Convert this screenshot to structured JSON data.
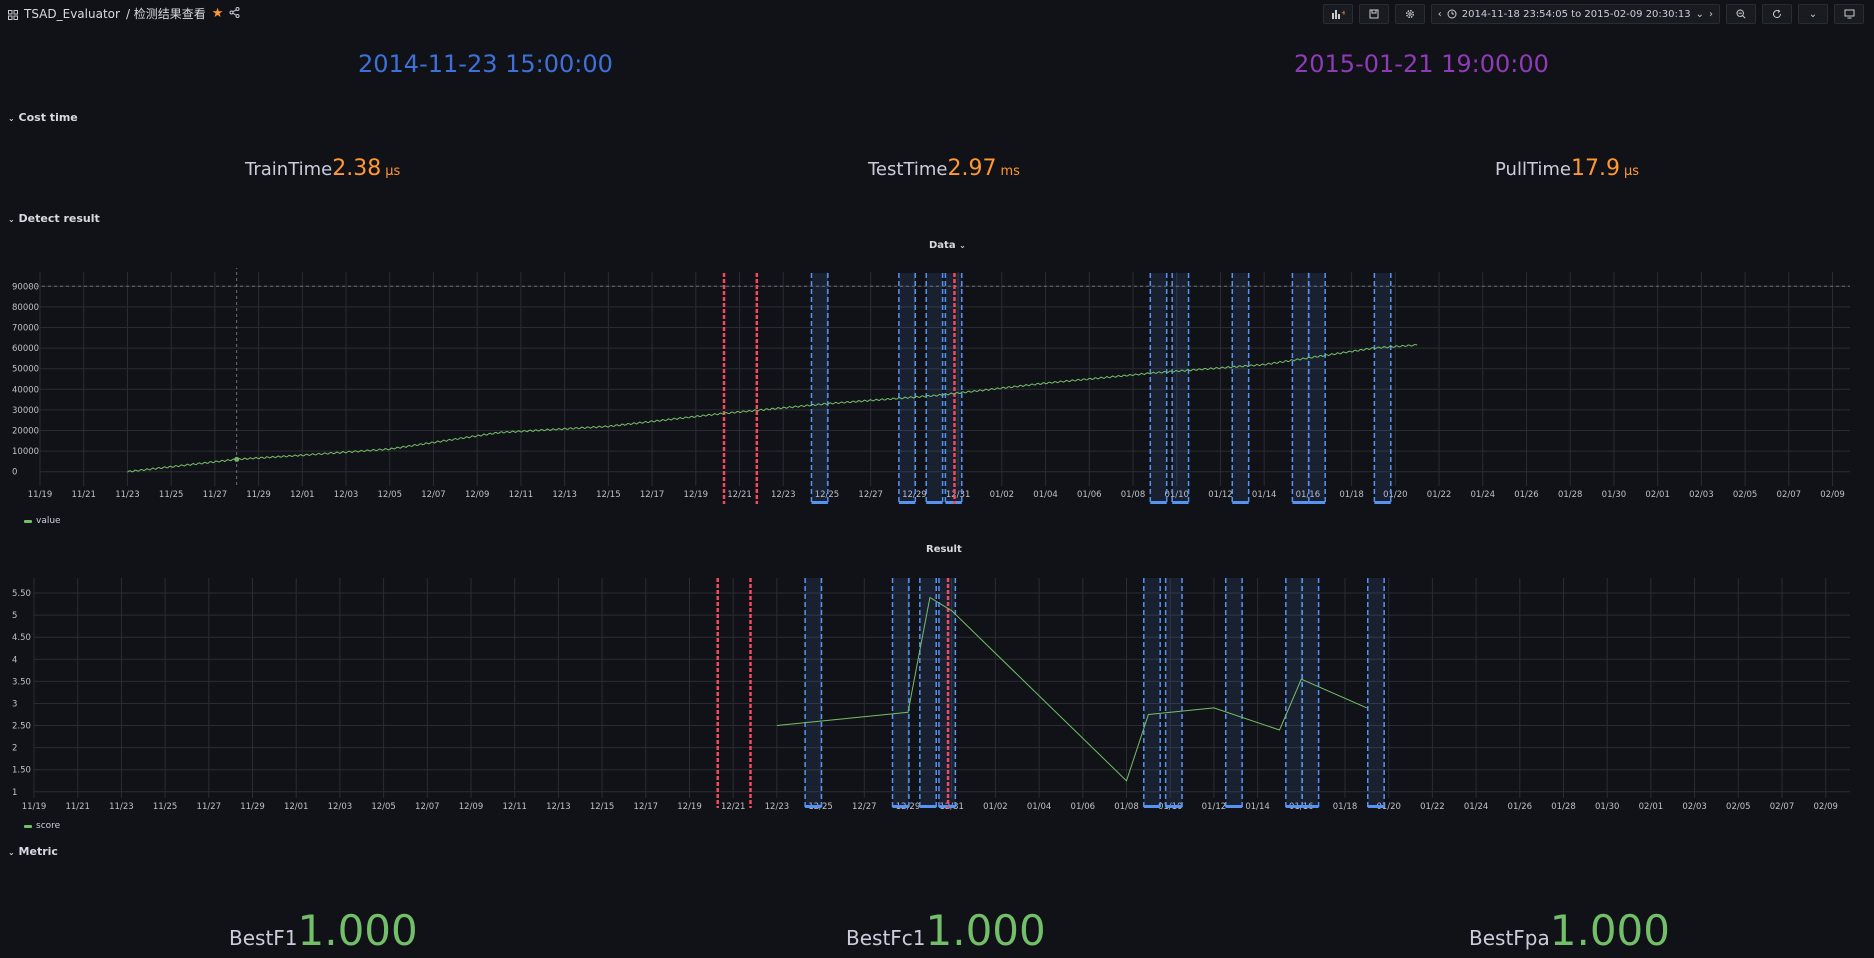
{
  "header": {
    "app_title": "TSAD_Evaluator",
    "page_title": "/ 检测结果查看",
    "time_range": "2014-11-18 23:54:05 to 2015-02-09 20:30:13"
  },
  "times": {
    "start": "2014-11-23 15:00:00",
    "end": "2015-01-21 19:00:00",
    "start_color": "#3d71d9",
    "end_color": "#8f3bb8"
  },
  "rows": {
    "cost_time": "Cost time",
    "detect_result": "Detect result",
    "metric": "Metric"
  },
  "cost": {
    "train": {
      "label": "TrainTime",
      "value": "2.38",
      "unit": "µs"
    },
    "test": {
      "label": "TestTime",
      "value": "2.97",
      "unit": "ms"
    },
    "pull": {
      "label": "PullTime",
      "value": "17.9",
      "unit": "µs"
    },
    "color": "#ff9830"
  },
  "metrics": {
    "f1": {
      "label": "BestF1",
      "value": "1.000"
    },
    "fc1": {
      "label": "BestFc1",
      "value": "1.000"
    },
    "fpa": {
      "label": "BestFpa",
      "value": "1.000"
    },
    "color": "#73bf69"
  },
  "chart_data": [
    {
      "type": "line",
      "panel_title": "Data",
      "series": [
        {
          "name": "value",
          "color": "#73bf69",
          "x": [
            "2014-11-23",
            "2014-11-28",
            "2014-12-01",
            "2014-12-05",
            "2014-12-10",
            "2014-12-15",
            "2014-12-20",
            "2014-12-25",
            "2014-12-30",
            "2015-01-04",
            "2015-01-09",
            "2015-01-14",
            "2015-01-19",
            "2015-01-21"
          ],
          "values": [
            0,
            6000,
            8000,
            11000,
            19000,
            22000,
            28000,
            33000,
            37000,
            43000,
            48000,
            52000,
            60000,
            61500
          ]
        }
      ],
      "x_ticks": [
        "11/19",
        "11/21",
        "11/23",
        "11/25",
        "11/27",
        "11/29",
        "12/01",
        "12/03",
        "12/05",
        "12/07",
        "12/09",
        "12/11",
        "12/13",
        "12/15",
        "12/17",
        "12/19",
        "12/21",
        "12/23",
        "12/25",
        "12/27",
        "12/29",
        "12/31",
        "01/02",
        "01/04",
        "01/06",
        "01/08",
        "01/10",
        "01/12",
        "01/14",
        "01/16",
        "01/18",
        "01/20",
        "01/22",
        "01/24",
        "01/26",
        "01/28",
        "01/30",
        "02/01",
        "02/03",
        "02/05",
        "02/07",
        "02/09"
      ],
      "y_ticks": [
        "0",
        "10000",
        "20000",
        "30000",
        "40000",
        "50000",
        "60000",
        "70000",
        "80000",
        "90000"
      ],
      "ylim": [
        -5000,
        95000
      ],
      "threshold": 90000
    },
    {
      "type": "line",
      "panel_title": "Result",
      "series": [
        {
          "name": "score",
          "color": "#73bf69",
          "x": [
            "2014-12-23",
            "2014-12-28",
            "2014-12-29",
            "2014-12-30",
            "2014-12-31",
            "2015-01-08",
            "2015-01-09",
            "2015-01-12",
            "2015-01-15",
            "2015-01-16",
            "2015-01-19"
          ],
          "values": [
            2.5,
            2.75,
            2.8,
            5.4,
            5.1,
            1.25,
            2.75,
            2.9,
            2.4,
            3.55,
            2.9
          ]
        }
      ],
      "x_ticks": [
        "11/19",
        "11/21",
        "11/23",
        "11/25",
        "11/27",
        "11/29",
        "12/01",
        "12/03",
        "12/05",
        "12/07",
        "12/09",
        "12/11",
        "12/13",
        "12/15",
        "12/17",
        "12/19",
        "12/21",
        "12/23",
        "12/25",
        "12/27",
        "12/29",
        "12/31",
        "01/02",
        "01/04",
        "01/06",
        "01/08",
        "01/10",
        "01/12",
        "01/14",
        "01/16",
        "01/18",
        "01/20",
        "01/22",
        "01/24",
        "01/26",
        "01/28",
        "01/30",
        "02/01",
        "02/03",
        "02/05",
        "02/07",
        "02/09"
      ],
      "y_ticks": [
        "1",
        "1.50",
        "2",
        "2.50",
        "3",
        "3.50",
        "4",
        "4.50",
        "5",
        "5.50"
      ],
      "ylim": [
        0.95,
        5.75
      ]
    }
  ],
  "annotations": {
    "red_dates": [
      "2014-12-20T07:00:00",
      "2014-12-21T19:00:00",
      "2014-12-30T20:00:00"
    ],
    "blue_ranges": [
      [
        "2014-12-24T07:00:00",
        "2014-12-25T01:00:00"
      ],
      [
        "2014-12-28T07:00:00",
        "2014-12-29T01:00:00"
      ],
      [
        "2014-12-29T13:00:00",
        "2014-12-30T07:00:00"
      ],
      [
        "2014-12-30T10:00:00",
        "2014-12-31T04:00:00"
      ],
      [
        "2015-01-08T19:00:00",
        "2015-01-09T13:00:00"
      ],
      [
        "2015-01-09T19:00:00",
        "2015-01-10T13:00:00"
      ],
      [
        "2015-01-12T13:00:00",
        "2015-01-13T07:00:00"
      ],
      [
        "2015-01-15T07:00:00",
        "2015-01-16T01:00:00"
      ],
      [
        "2015-01-16T01:00:00",
        "2015-01-16T19:00:00"
      ],
      [
        "2015-01-19T01:00:00",
        "2015-01-19T19:00:00"
      ]
    ],
    "red_color": "#f2495c",
    "blue_color": "#5794f2"
  }
}
